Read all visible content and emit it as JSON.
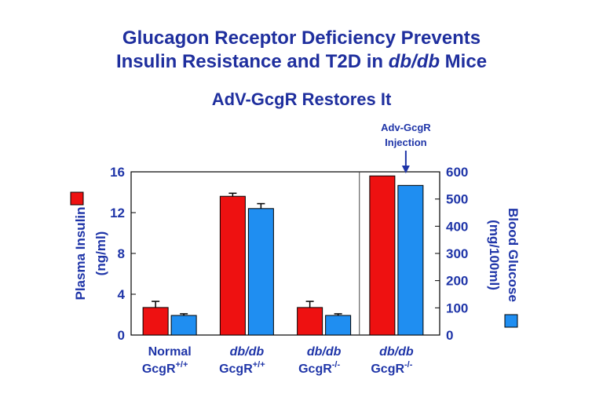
{
  "title_line1": "Glucagon Receptor Deficiency Prevents",
  "title_line2_a": "Insulin Resistance and T2D in ",
  "title_line2_b": "db/db",
  "title_line2_c": " Mice",
  "subtitle": "AdV-GcgR Restores It",
  "colors": {
    "insulin": "#ee1111",
    "glucose": "#1f8ef1",
    "text": "#1f35a8"
  },
  "chart_data": {
    "type": "bar",
    "left_axis": {
      "label_line1": "Plasma Insulin",
      "label_line2": "(ng/ml)",
      "ticks": [
        0,
        4,
        8,
        12,
        16
      ],
      "ylim": [
        0,
        16
      ]
    },
    "right_axis": {
      "label_line1": "Blood Glucose",
      "label_line2": "(mg/100ml)",
      "ticks": [
        0,
        100,
        200,
        300,
        400,
        500,
        600
      ],
      "ylim": [
        0,
        600
      ]
    },
    "categories": [
      {
        "line1": "Normal",
        "line1_italic": false,
        "line2": "GcgR",
        "sup": "+/+"
      },
      {
        "line1": "db/db",
        "line1_italic": true,
        "line2": "GcgR",
        "sup": "+/+"
      },
      {
        "line1": "db/db",
        "line1_italic": true,
        "line2": "GcgR",
        "sup": "-/-"
      },
      {
        "line1": "db/db",
        "line1_italic": true,
        "line2": "GcgR",
        "sup": "-/-"
      }
    ],
    "series": [
      {
        "name": "Plasma Insulin",
        "axis": "left",
        "values": [
          2.7,
          13.6,
          2.7,
          15.6
        ],
        "errors": [
          0.6,
          0.3,
          0.6,
          0
        ]
      },
      {
        "name": "Blood Glucose",
        "axis": "right",
        "values": [
          72,
          465,
          72,
          550
        ],
        "errors": [
          6,
          18,
          6,
          0
        ]
      }
    ],
    "annotation": {
      "line1": "Adv-GcgR",
      "line2": "Injection",
      "category_index": 3
    },
    "grid": false,
    "legend": "axis-side markers"
  }
}
